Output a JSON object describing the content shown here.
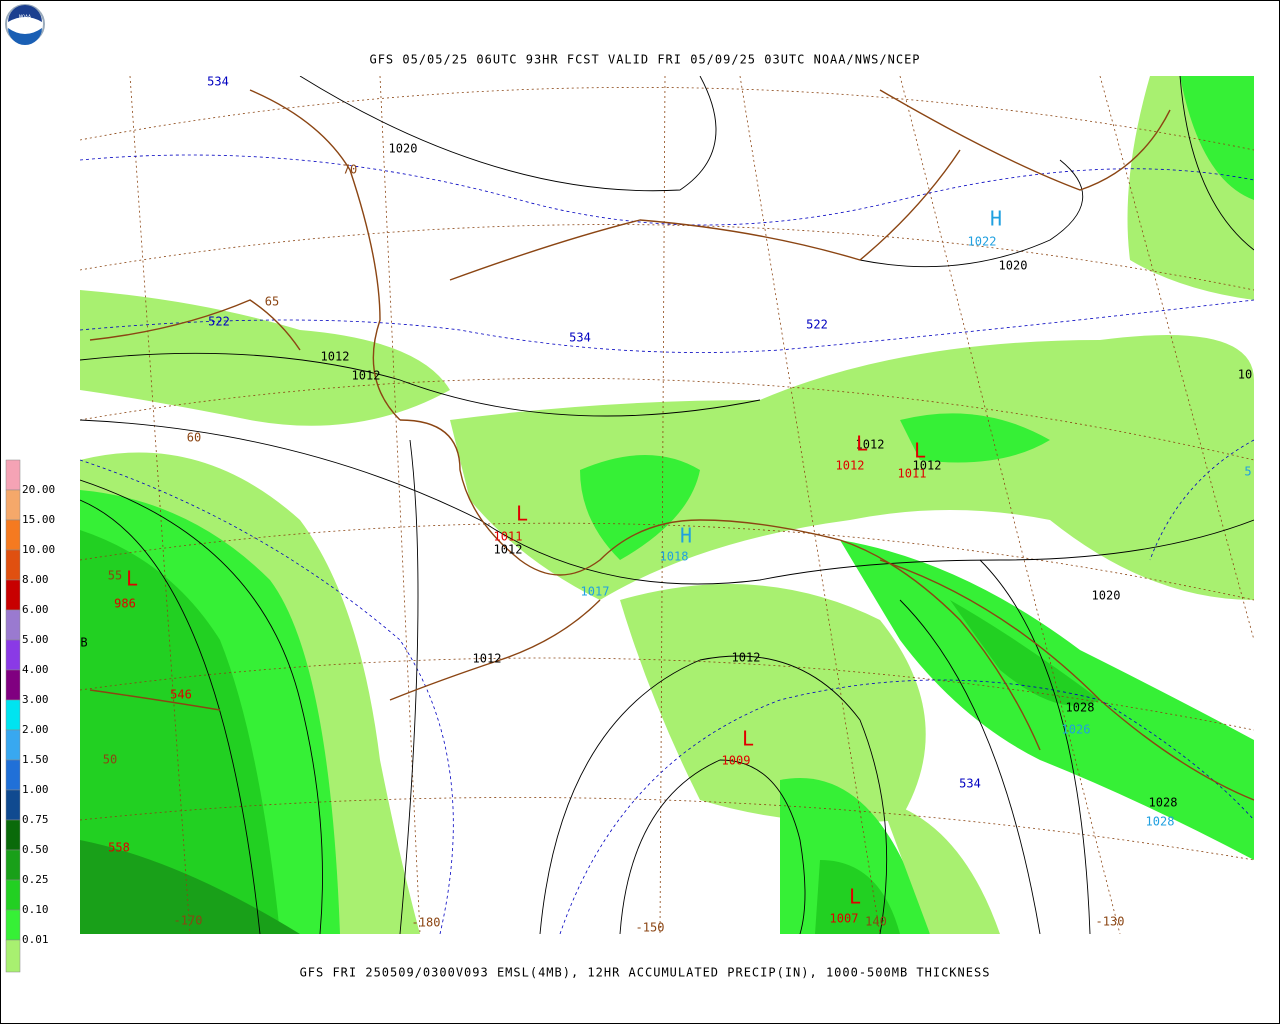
{
  "header": {
    "logo_text": "NOAA",
    "title": "GFS 05/05/25 06UTC 93HR FCST VALID FRI 05/09/25 03UTC NOAA/NWS/NCEP"
  },
  "footer": {
    "caption": "GFS FRI 250509/0300V093 EMSL(4MB), 12HR ACCUMULATED PRECIP(IN), 1000-500MB THICKNESS"
  },
  "legend": {
    "labels": [
      "20.00",
      "15.00",
      "10.00",
      "8.00",
      "6.00",
      "5.00",
      "4.00",
      "3.00",
      "2.00",
      "1.50",
      "1.00",
      "0.75",
      "0.50",
      "0.25",
      "0.10",
      "0.01"
    ],
    "colors": [
      "#f5a3b5",
      "#f5a86a",
      "#f57a20",
      "#e05010",
      "#c80000",
      "#9a7ad0",
      "#8a3ae6",
      "#800080",
      "#00e4f0",
      "#38a8f0",
      "#2070d8",
      "#104a90",
      "#0a6a0a",
      "#19a019",
      "#22d022",
      "#36f036",
      "#a8f070"
    ]
  },
  "map": {
    "labels": [
      {
        "text": "534",
        "color": "#0000c0"
      },
      {
        "text": "1020",
        "color": "#000000"
      },
      {
        "text": "70",
        "color": "#8b4513"
      },
      {
        "text": "H",
        "color": "#20a0e0"
      },
      {
        "text": "1022",
        "color": "#20a0e0"
      },
      {
        "text": "1020",
        "color": "#000000"
      },
      {
        "text": "65",
        "color": "#8b4513"
      },
      {
        "text": "522",
        "color": "#0000c0"
      },
      {
        "text": "522",
        "color": "#0000c0"
      },
      {
        "text": "534",
        "color": "#0000c0"
      },
      {
        "text": "1012",
        "color": "#000000"
      },
      {
        "text": "1012",
        "color": "#000000"
      },
      {
        "text": "10",
        "color": "#000000"
      },
      {
        "text": "60",
        "color": "#8b4513"
      },
      {
        "text": "1012",
        "color": "#000000"
      },
      {
        "text": "L",
        "color": "#e00000"
      },
      {
        "text": "1012",
        "color": "#e00000"
      },
      {
        "text": "L",
        "color": "#e00000"
      },
      {
        "text": "1011",
        "color": "#e00000"
      },
      {
        "text": "1012",
        "color": "#000000"
      },
      {
        "text": "L",
        "color": "#e00000"
      },
      {
        "text": "1011",
        "color": "#e00000"
      },
      {
        "text": "1012",
        "color": "#000000"
      },
      {
        "text": "55",
        "color": "#8b4513"
      },
      {
        "text": "L",
        "color": "#e00000"
      },
      {
        "text": "986",
        "color": "#e00000"
      },
      {
        "text": "H",
        "color": "#20a0e0"
      },
      {
        "text": "1018",
        "color": "#20a0e0"
      },
      {
        "text": "1017",
        "color": "#20a0e0"
      },
      {
        "text": "1020",
        "color": "#000000"
      },
      {
        "text": "B",
        "color": "#000000"
      },
      {
        "text": "1012",
        "color": "#000000"
      },
      {
        "text": "1012",
        "color": "#000000"
      },
      {
        "text": "546",
        "color": "#e00000"
      },
      {
        "text": "L",
        "color": "#e00000"
      },
      {
        "text": "1009",
        "color": "#e00000"
      },
      {
        "text": "1028",
        "color": "#000000"
      },
      {
        "text": "1026",
        "color": "#20a0e0"
      },
      {
        "text": "50",
        "color": "#8b4513"
      },
      {
        "text": "534",
        "color": "#0000c0"
      },
      {
        "text": "1028",
        "color": "#000000"
      },
      {
        "text": "1028",
        "color": "#20a0e0"
      },
      {
        "text": "558",
        "color": "#e00000"
      },
      {
        "text": "L",
        "color": "#e00000"
      },
      {
        "text": "1007",
        "color": "#e00000"
      },
      {
        "text": "-170",
        "color": "#8b4513"
      },
      {
        "text": "-180",
        "color": "#8b4513"
      },
      {
        "text": "-150",
        "color": "#8b4513"
      },
      {
        "text": "140",
        "color": "#8b4513"
      },
      {
        "text": "-130",
        "color": "#8b4513"
      },
      {
        "text": "5",
        "color": "#20a0e0"
      }
    ]
  }
}
